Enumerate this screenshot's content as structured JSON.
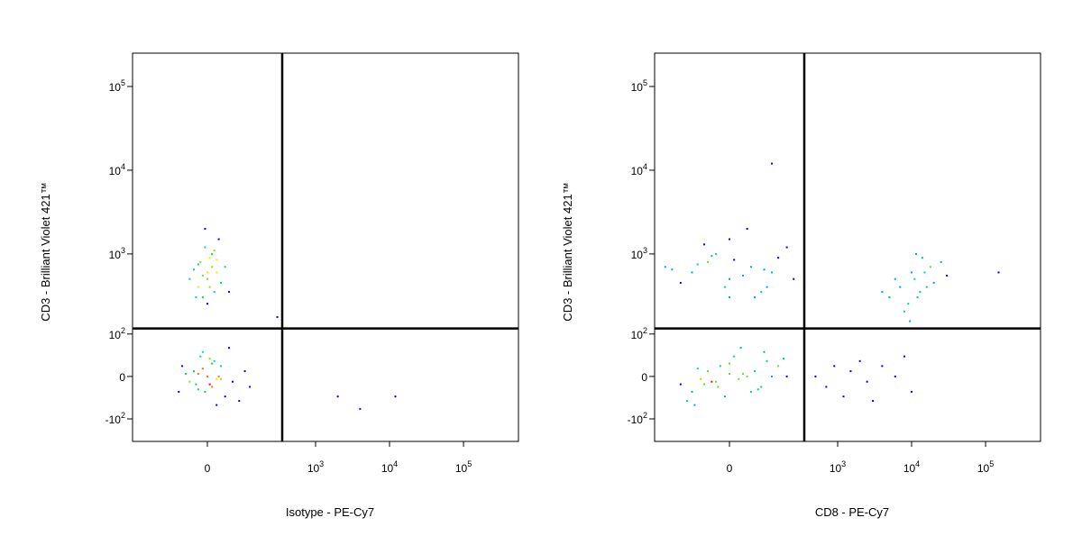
{
  "chart_data": [
    {
      "type": "scatter",
      "x_label": "Isotype - PE-Cy7",
      "y_label": "CD3 - Brilliant Violet 421™",
      "xscale": "biexponential",
      "yscale": "biexponential",
      "linear_width": 34.5,
      "xlim": [
        -351,
        553000
      ],
      "ylim": [
        -200,
        250000
      ],
      "xticks": [
        0,
        {
          "value": 1000,
          "label": "10",
          "exponent": "3"
        },
        {
          "value": 10000,
          "label": "10",
          "exponent": "4"
        },
        {
          "value": 100000,
          "label": "10",
          "exponent": "5"
        }
      ],
      "yticks": [
        {
          "value": -100,
          "label": "-10",
          "exponent": "2"
        },
        0,
        {
          "value": 100,
          "label": "10",
          "exponent": "2"
        },
        {
          "value": 1000,
          "label": "10",
          "exponent": "3"
        },
        {
          "value": 10000,
          "label": "10",
          "exponent": "4"
        },
        {
          "value": 100000,
          "label": "10",
          "exponent": "5"
        }
      ],
      "gates": {
        "x": 351,
        "y": 120,
        "color": "#000000"
      },
      "series": [
        {
          "color": "#0000ff",
          "x": [
            -40,
            -20,
            0,
            10,
            -10,
            20,
            30,
            -30,
            5,
            15,
            -5,
            25,
            -15,
            40,
            -50,
            60,
            -60,
            80,
            -70,
            100,
            0,
            10,
            -20,
            30,
            -10,
            20,
            5,
            -25,
            50,
            120,
            -10,
            0,
            10,
            -20,
            5,
            20,
            -5,
            15,
            -15,
            30,
            -30,
            0,
            10,
            -10,
            25,
            -25,
            40,
            5,
            -5,
            20,
            0,
            -40,
            50,
            15,
            -20,
            2000,
            4000,
            12000,
            300
          ],
          "values": [
            -10,
            5,
            0,
            -20,
            15,
            -5,
            20,
            10,
            -15,
            30,
            -30,
            0,
            40,
            -40,
            5,
            -10,
            20,
            -50,
            -30,
            10,
            0,
            25,
            -25,
            -5,
            50,
            -60,
            35,
            -15,
            60,
            -20,
            300,
            500,
            700,
            400,
            900,
            600,
            1200,
            350,
            800,
            450,
            650,
            250,
            1000,
            550,
            1500,
            300,
            700,
            400,
            2000,
            850,
            600,
            500,
            350,
            1100,
            750,
            -40,
            -70,
            -40,
            170
          ]
        }
      ]
    },
    {
      "type": "scatter",
      "x_label": "CD8 - PE-Cy7",
      "y_label": "CD3 - Brilliant Violet 421™",
      "xscale": "biexponential",
      "yscale": "biexponential",
      "linear_width": 34.5,
      "xlim": [
        -351,
        553000
      ],
      "ylim": [
        -200,
        250000
      ],
      "xticks": [
        0,
        {
          "value": 1000,
          "label": "10",
          "exponent": "3"
        },
        {
          "value": 10000,
          "label": "10",
          "exponent": "4"
        },
        {
          "value": 100000,
          "label": "10",
          "exponent": "5"
        }
      ],
      "yticks": [
        {
          "value": -100,
          "label": "-10",
          "exponent": "2"
        },
        0,
        {
          "value": 100,
          "label": "10",
          "exponent": "2"
        },
        {
          "value": 1000,
          "label": "10",
          "exponent": "3"
        },
        {
          "value": 10000,
          "label": "10",
          "exponent": "4"
        },
        {
          "value": 100000,
          "label": "10",
          "exponent": "5"
        }
      ],
      "gates": {
        "x": 351,
        "y": 120,
        "color": "#000000"
      },
      "series": [
        {
          "color": "#0000ff",
          "x": [
            -40,
            0,
            40,
            80,
            -80,
            20,
            -20,
            60,
            -60,
            100,
            -100,
            120,
            10,
            -10,
            30,
            -30,
            150,
            -120,
            50,
            -50,
            200,
            0,
            70,
            -70,
            90,
            -90,
            180,
            -150,
            25,
            -25,
            500,
            700,
            900,
            1200,
            1500,
            2000,
            2500,
            3000,
            4000,
            6000,
            8000,
            10000,
            -100,
            -50,
            0,
            50,
            100,
            150,
            -150,
            200,
            -200,
            0,
            30,
            -30,
            80,
            -80,
            120,
            60,
            -60,
            10,
            -10,
            250,
            -250,
            40,
            -40,
            90,
            0,
            5000,
            7000,
            9000,
            11000,
            13000,
            15000,
            18000,
            20000,
            25000,
            8000,
            10000,
            12000,
            14000,
            6000,
            16000,
            9500,
            11500,
            30000,
            4000,
            150000,
            120
          ],
          "values": [
            -10,
            5,
            0,
            -20,
            15,
            -5,
            20,
            10,
            -15,
            30,
            -30,
            0,
            40,
            -40,
            5,
            -10,
            20,
            -50,
            -30,
            10,
            0,
            25,
            -25,
            -5,
            50,
            -60,
            35,
            -15,
            60,
            -20,
            0,
            -20,
            20,
            -40,
            10,
            30,
            -10,
            -50,
            20,
            0,
            40,
            -30,
            600,
            800,
            500,
            700,
            400,
            900,
            450,
            1200,
            650,
            1500,
            550,
            1000,
            350,
            750,
            600,
            300,
            1300,
            850,
            400,
            500,
            700,
            2000,
            950,
            650,
            300,
            300,
            400,
            250,
            500,
            350,
            600,
            700,
            450,
            800,
            200,
            600,
            300,
            900,
            500,
            400,
            150,
            1000,
            550,
            350,
            600,
            12000
          ]
        }
      ]
    }
  ]
}
